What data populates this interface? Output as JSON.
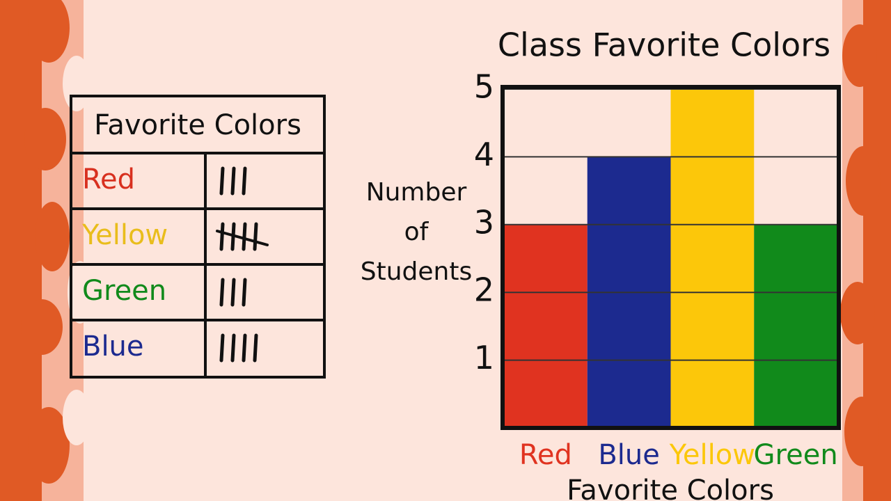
{
  "tally_table": {
    "title": "Favorite Colors",
    "rows": [
      {
        "label": "Red",
        "color": "#d8301f",
        "count": 3
      },
      {
        "label": "Yellow",
        "color": "#e9bd1c",
        "count": 5
      },
      {
        "label": "Green",
        "color": "#118a1b",
        "count": 3
      },
      {
        "label": "Blue",
        "color": "#1c2a8f",
        "count": 4
      }
    ]
  },
  "chart_data": {
    "type": "bar",
    "title": "Class Favorite Colors",
    "categories": [
      "Red",
      "Blue",
      "Yellow",
      "Green"
    ],
    "values": [
      3,
      4,
      5,
      3
    ],
    "colors": [
      "#e03320",
      "#1c2a8f",
      "#fcc70a",
      "#118a1b"
    ],
    "ylim": [
      0,
      5
    ],
    "yticks": [
      1,
      2,
      3,
      4,
      5
    ],
    "grid": true,
    "y_label": "Number of Students",
    "x_label": "Favorite Colors"
  }
}
